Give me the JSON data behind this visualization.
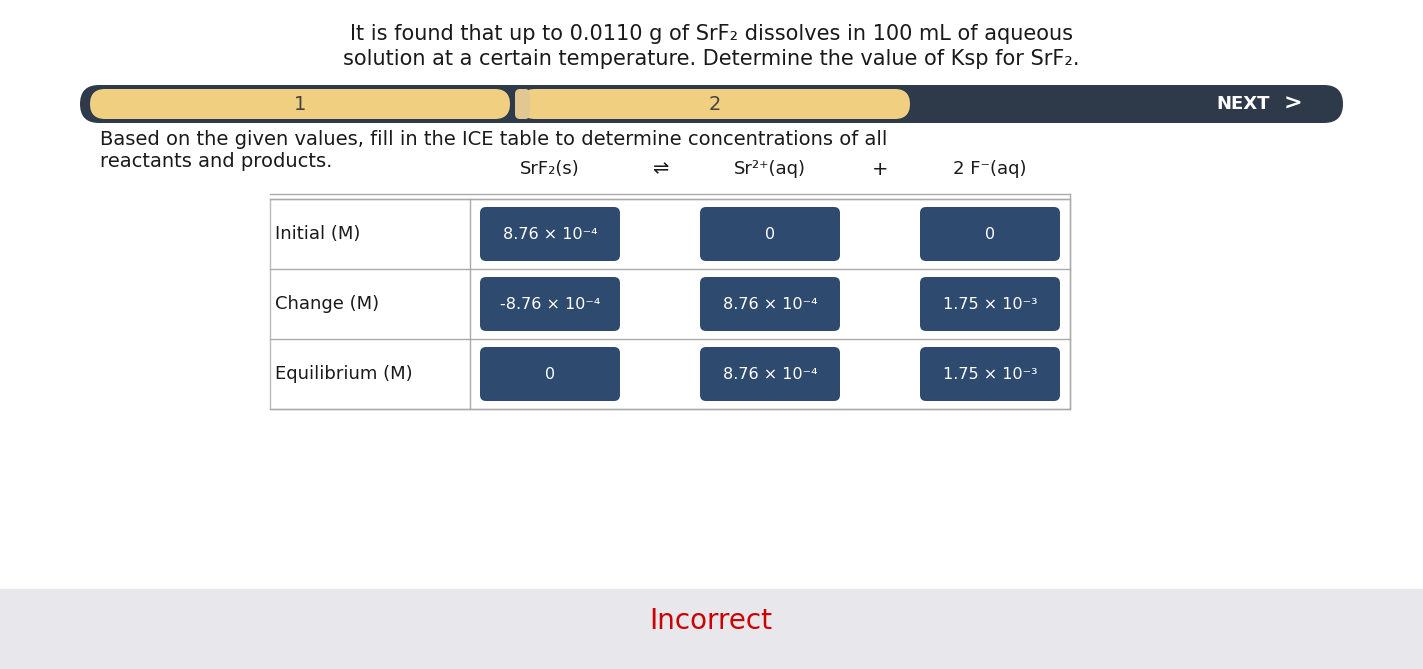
{
  "title_line1": "It is found that up to 0.0110 g of SrF₂ dissolves in 100 mL of aqueous",
  "title_line2": "solution at a certain temperature. Determine the value of Ksp for SrF₂.",
  "nav_bar_bg": "#2e3a4a",
  "nav_step1_color": "#f0d080",
  "nav_step2_color": "#f0d080",
  "nav_step1_label": "1",
  "nav_step2_label": "2",
  "nav_next_text": "NEXT",
  "instruction": "Based on the given values, fill in the ICE table to determine concentrations of all\nreactants and products.",
  "equation_reactant": "SrF₂(s)",
  "equation_arrow": "⇌",
  "equation_product1": "Sr²⁺(aq)",
  "equation_plus": "+",
  "equation_product2": "2 F⁻(aq)",
  "row_labels": [
    "Initial (M)",
    "Change (M)",
    "Equilibrium (M)"
  ],
  "cell_color": "#2e4a6e",
  "cell_text_color": "#ffffff",
  "cell_data": [
    [
      "8.76 × 10⁻⁴",
      "0",
      "0"
    ],
    [
      "-8.76 × 10⁻⁴",
      "8.76 × 10⁻⁴",
      "1.75 × 10⁻³"
    ],
    [
      "0",
      "8.76 × 10⁻⁴",
      "1.75 × 10⁻³"
    ]
  ],
  "incorrect_text": "Incorrect",
  "incorrect_color": "#cc0000",
  "bg_top": "#ffffff",
  "bg_bottom": "#e8e8ec"
}
